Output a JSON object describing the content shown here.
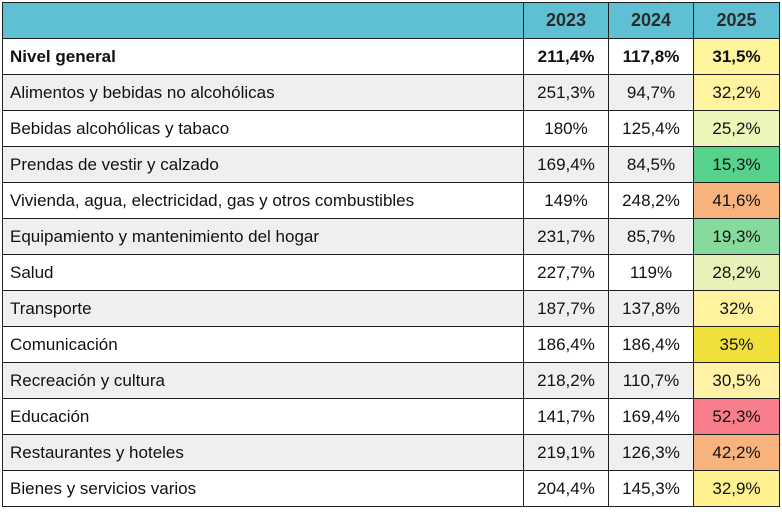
{
  "chart_data": {
    "type": "table",
    "columns": [
      "",
      "2023",
      "2024",
      "2025"
    ],
    "rows": [
      {
        "label": "Nivel general",
        "values": [
          "211,4%",
          "117,8%",
          "31,5%"
        ],
        "bold": true
      },
      {
        "label": "Alimentos y bebidas no alcohólicas",
        "values": [
          "251,3%",
          "94,7%",
          "32,2%"
        ]
      },
      {
        "label": "Bebidas alcohólicas y tabaco",
        "values": [
          "180%",
          "125,4%",
          "25,2%"
        ]
      },
      {
        "label": "Prendas de vestir y calzado",
        "values": [
          "169,4%",
          "84,5%",
          "15,3%"
        ]
      },
      {
        "label": "Vivienda, agua, electricidad, gas y otros combustibles",
        "values": [
          "149%",
          "248,2%",
          "41,6%"
        ]
      },
      {
        "label": "Equipamiento y mantenimiento del hogar",
        "values": [
          "231,7%",
          "85,7%",
          "19,3%"
        ]
      },
      {
        "label": "Salud",
        "values": [
          "227,7%",
          "119%",
          "28,2%"
        ]
      },
      {
        "label": "Transporte",
        "values": [
          "187,7%",
          "137,8%",
          "32%"
        ]
      },
      {
        "label": "Comunicación",
        "values": [
          "186,4%",
          "186,4%",
          "35%"
        ]
      },
      {
        "label": "Recreación y cultura",
        "values": [
          "218,2%",
          "110,7%",
          "30,5%"
        ]
      },
      {
        "label": "Educación",
        "values": [
          "141,7%",
          "169,4%",
          "52,3%"
        ]
      },
      {
        "label": "Restaurantes y hoteles",
        "values": [
          "219,1%",
          "126,3%",
          "42,2%"
        ]
      },
      {
        "label": "Bienes y servicios varios",
        "values": [
          "204,4%",
          "145,3%",
          "32,9%"
        ]
      }
    ],
    "colors": {
      "header": "#5fc0d3",
      "alt_row": "#efefef",
      "heat_2025": [
        "#fff59d",
        "#fff3a0",
        "#eef5b8",
        "#57d28d",
        "#f8b27c",
        "#86da9c",
        "#eaf1b8",
        "#fff3a0",
        "#f1e03a",
        "#fff2a6",
        "#f77e8a",
        "#f8b27c",
        "#fff18e"
      ]
    }
  }
}
